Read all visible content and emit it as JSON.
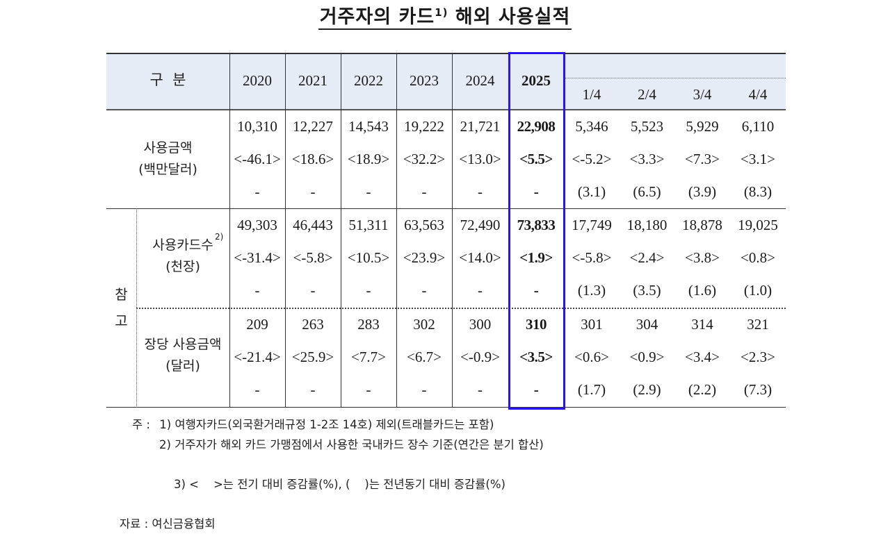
{
  "title": {
    "text": "거주자의 카드",
    "sup": "1)",
    "rest": " 해외 사용실적"
  },
  "header": {
    "category_label": "구  분",
    "years": [
      "2020",
      "2021",
      "2022",
      "2023",
      "2024",
      "2025"
    ],
    "quarters": [
      "1/4",
      "2/4",
      "3/4",
      "4/4"
    ],
    "highlight_year": "2025",
    "highlight_color": "#2a14f0",
    "header_bg": "#e6ecf6"
  },
  "side_group_label": [
    "참",
    "고"
  ],
  "rows": [
    {
      "label": "사용금액",
      "unit": "(백만달러)",
      "sup": "",
      "values": [
        "10,310",
        "12,227",
        "14,543",
        "19,222",
        "21,721",
        "22,908",
        "5,346",
        "5,523",
        "5,929",
        "6,110"
      ],
      "qoq": [
        "<-46.1>",
        "<18.6>",
        "<18.9>",
        "<32.2>",
        "<13.0>",
        "<5.5>",
        "<-5.2>",
        "<3.3>",
        "<7.3>",
        "<3.1>"
      ],
      "yoy": [
        "-",
        "-",
        "-",
        "-",
        "-",
        "-",
        "(3.1)",
        "(6.5)",
        "(3.9)",
        "(8.3)"
      ]
    },
    {
      "label": "사용카드수",
      "unit": "(천장)",
      "sup": "2)",
      "values": [
        "49,303",
        "46,443",
        "51,311",
        "63,563",
        "72,490",
        "73,833",
        "17,749",
        "18,180",
        "18,878",
        "19,025"
      ],
      "qoq": [
        "<-31.4>",
        "<-5.8>",
        "<10.5>",
        "<23.9>",
        "<14.0>",
        "<1.9>",
        "<-5.8>",
        "<2.4>",
        "<3.8>",
        "<0.8>"
      ],
      "yoy": [
        "-",
        "-",
        "-",
        "-",
        "-",
        "-",
        "(1.3)",
        "(3.5)",
        "(1.6)",
        "(1.0)"
      ]
    },
    {
      "label": "장당 사용금액",
      "unit": "(달러)",
      "sup": "",
      "values": [
        "209",
        "263",
        "283",
        "302",
        "300",
        "310",
        "301",
        "304",
        "314",
        "321"
      ],
      "qoq": [
        "<-21.4>",
        "<25.9>",
        "<7.7>",
        "<6.7>",
        "<-0.9>",
        "<3.5>",
        "<0.6>",
        "<0.9>",
        "<3.4>",
        "<2.3>"
      ],
      "yoy": [
        "-",
        "-",
        "-",
        "-",
        "-",
        "-",
        "(1.7)",
        "(2.9)",
        "(2.2)",
        "(7.3)"
      ]
    }
  ],
  "notes": {
    "prefix": "주 :",
    "items": [
      "1) 여행자카드(외국환거래규정 1-2조 14호) 제외(트래블카드는 포함)",
      "2) 거주자가 해외 카드 가맹점에서 사용한 국내카드 장수 기준(연간은 분기 합산)",
      "3) <    >는 전기 대비 증감률(%), (    )는 전년동기 대비 증감률(%)"
    ],
    "source_prefix": "자료 :",
    "source": "여신금융협회"
  }
}
